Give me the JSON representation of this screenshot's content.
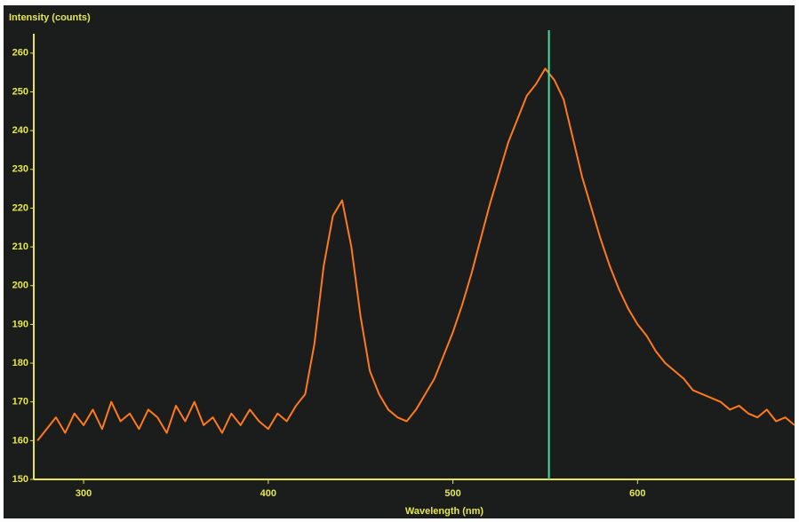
{
  "chart_data": {
    "type": "line",
    "y_label": "Intensity (counts)",
    "x_label": "Wavelength (nm)",
    "x": [
      275,
      280,
      285,
      290,
      295,
      300,
      305,
      310,
      315,
      320,
      325,
      330,
      335,
      340,
      345,
      350,
      355,
      360,
      365,
      370,
      375,
      380,
      385,
      390,
      395,
      400,
      405,
      410,
      415,
      420,
      425,
      430,
      435,
      440,
      445,
      450,
      455,
      460,
      465,
      470,
      475,
      480,
      485,
      490,
      495,
      500,
      505,
      510,
      515,
      520,
      525,
      530,
      535,
      540,
      545,
      550,
      555,
      560,
      565,
      570,
      575,
      580,
      585,
      590,
      595,
      600,
      605,
      610,
      615,
      620,
      625,
      630,
      635,
      640,
      645,
      650,
      655,
      660,
      665,
      670,
      675,
      680,
      685
    ],
    "values": [
      160,
      163,
      166,
      162,
      167,
      164,
      168,
      163,
      170,
      165,
      167,
      163,
      168,
      166,
      162,
      169,
      165,
      170,
      164,
      166,
      162,
      167,
      164,
      168,
      165,
      163,
      167,
      165,
      169,
      172,
      185,
      205,
      218,
      222,
      210,
      192,
      178,
      172,
      168,
      166,
      165,
      168,
      172,
      176,
      182,
      188,
      195,
      203,
      212,
      221,
      229,
      237,
      243,
      249,
      252,
      256,
      253,
      248,
      238,
      228,
      220,
      212,
      205,
      199,
      194,
      190,
      187,
      183,
      180,
      178,
      176,
      173,
      172,
      171,
      170,
      168,
      169,
      167,
      166,
      168,
      165,
      166,
      164
    ],
    "color": "#ff7a1a",
    "axis_color": "#e6e84a",
    "cursor_x": 552,
    "cursor_color": "#3fe0a2",
    "xlim": [
      273,
      686
    ],
    "xticks": [
      300,
      400,
      500,
      600
    ],
    "ylim": [
      150,
      265
    ],
    "yticks": [
      150,
      160,
      170,
      180,
      190,
      200,
      210,
      220,
      230,
      240,
      250,
      260
    ],
    "grid": false
  }
}
